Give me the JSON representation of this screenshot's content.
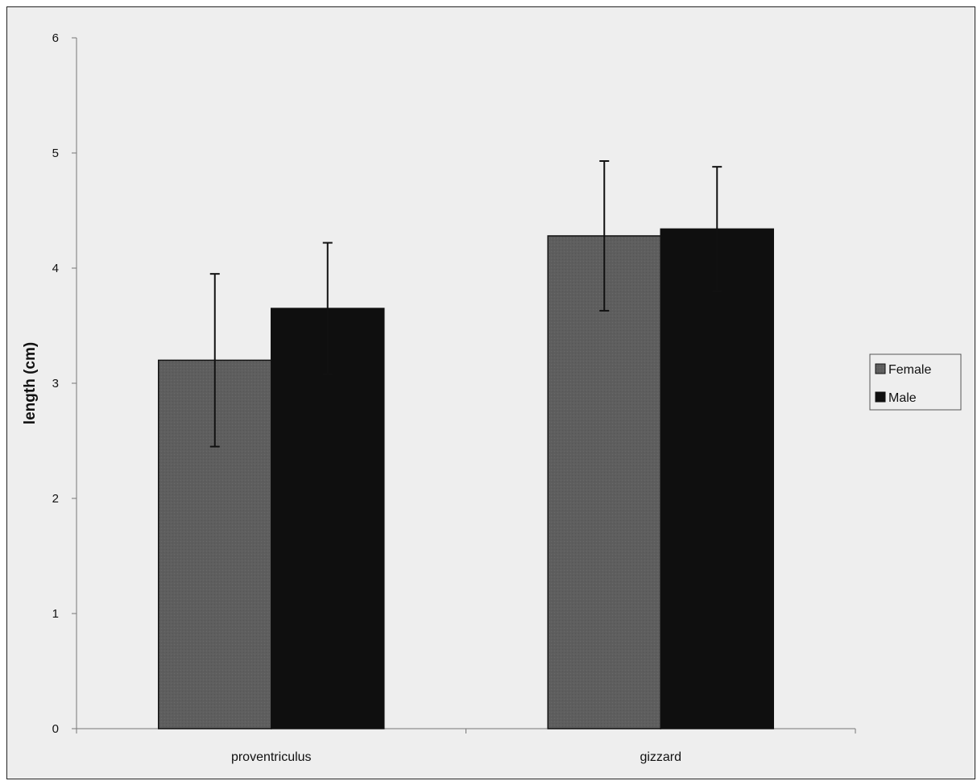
{
  "chart_data": {
    "type": "bar",
    "title": "",
    "xlabel": "",
    "ylabel": "length (cm)",
    "ylim": [
      0,
      6
    ],
    "yticks": [
      0,
      1,
      2,
      3,
      4,
      5,
      6
    ],
    "categories": [
      "proventriculus",
      "gizzard"
    ],
    "series": [
      {
        "name": "Female",
        "values": [
          3.2,
          4.28
        ],
        "errors": [
          0.75,
          0.65
        ],
        "color": "#5e5e5e"
      },
      {
        "name": "Male",
        "values": [
          3.65,
          4.34
        ],
        "errors": [
          0.57,
          0.54
        ],
        "color": "#0f0f0f"
      }
    ],
    "grid": false,
    "legend": "right"
  }
}
